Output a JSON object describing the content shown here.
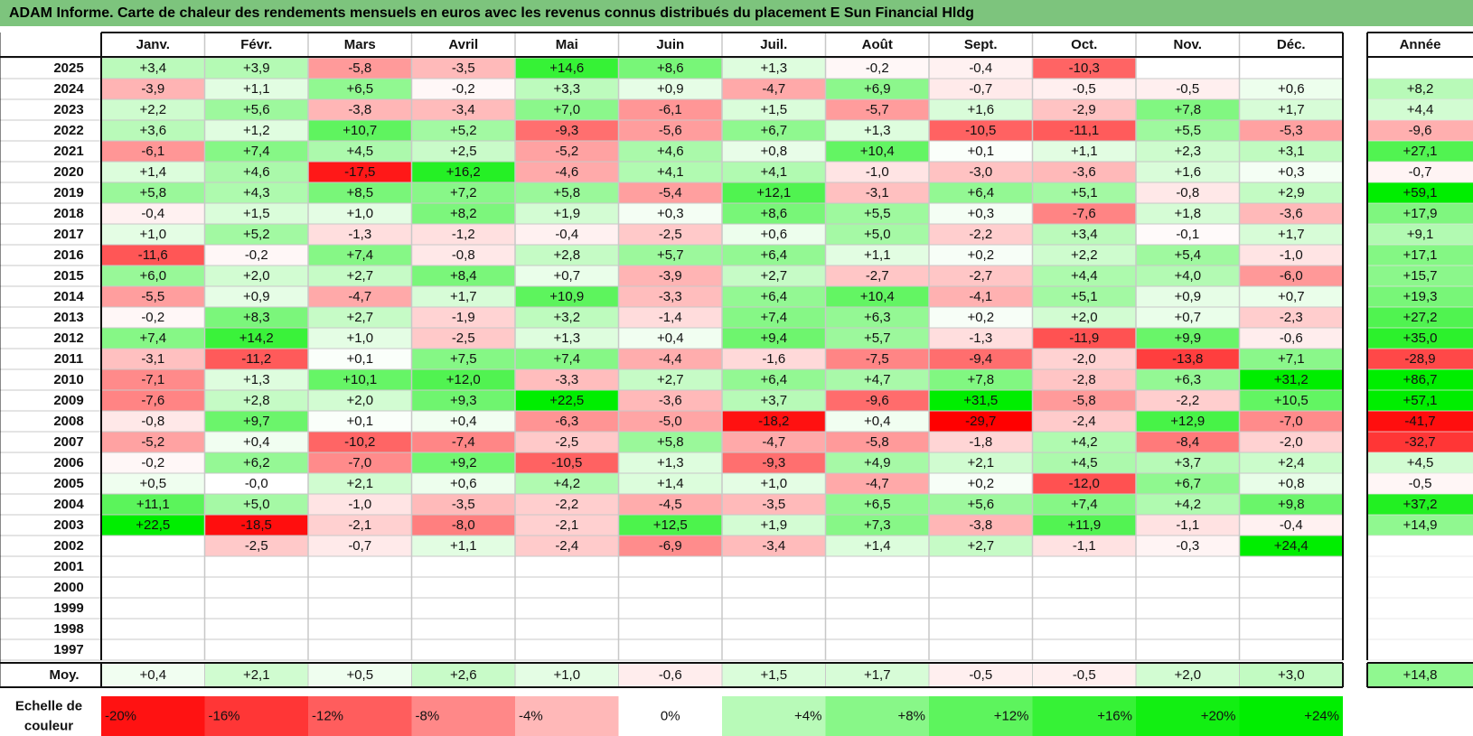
{
  "title": "ADAM Informe. Carte de chaleur des rendements mensuels en euros avec les revenus connus distribués du placement E Sun Financial Hldg",
  "year_header": "Année",
  "avg_label": "Moy.",
  "scale_label_line1": "Echelle de",
  "scale_label_line2": "couleur",
  "colors": {
    "negative": "#ff0000",
    "positive": "#00ee00",
    "neutral": "#ffffff",
    "title_bg": "#7dc47d"
  },
  "chart_data": {
    "type": "heatmap",
    "title": "ADAM Informe. Carte de chaleur des rendements mensuels en euros avec les revenus connus distribués du placement E Sun Financial Hldg",
    "columns": [
      "Janv.",
      "Févr.",
      "Mars",
      "Avril",
      "Mai",
      "Juin",
      "Juil.",
      "Août",
      "Sept.",
      "Oct.",
      "Nov.",
      "Déc."
    ],
    "rows": [
      {
        "year": "2025",
        "values": [
          "+3,4",
          "+3,9",
          "-5,8",
          "-3,5",
          "+14,6",
          "+8,6",
          "+1,3",
          "-0,2",
          "-0,4",
          "-10,3",
          "",
          ""
        ],
        "annual": ""
      },
      {
        "year": "2024",
        "values": [
          "-3,9",
          "+1,1",
          "+6,5",
          "-0,2",
          "+3,3",
          "+0,9",
          "-4,7",
          "+6,9",
          "-0,7",
          "-0,5",
          "-0,5",
          "+0,6"
        ],
        "annual": "+8,2"
      },
      {
        "year": "2023",
        "values": [
          "+2,2",
          "+5,6",
          "-3,8",
          "-3,4",
          "+7,0",
          "-6,1",
          "+1,5",
          "-5,7",
          "+1,6",
          "-2,9",
          "+7,8",
          "+1,7"
        ],
        "annual": "+4,4"
      },
      {
        "year": "2022",
        "values": [
          "+3,6",
          "+1,2",
          "+10,7",
          "+5,2",
          "-9,3",
          "-5,6",
          "+6,7",
          "+1,3",
          "-10,5",
          "-11,1",
          "+5,5",
          "-5,3"
        ],
        "annual": "-9,6"
      },
      {
        "year": "2021",
        "values": [
          "-6,1",
          "+7,4",
          "+4,5",
          "+2,5",
          "-5,2",
          "+4,6",
          "+0,8",
          "+10,4",
          "+0,1",
          "+1,1",
          "+2,3",
          "+3,1"
        ],
        "annual": "+27,1"
      },
      {
        "year": "2020",
        "values": [
          "+1,4",
          "+4,6",
          "-17,5",
          "+16,2",
          "-4,6",
          "+4,1",
          "+4,1",
          "-1,0",
          "-3,0",
          "-3,6",
          "+1,6",
          "+0,3"
        ],
        "annual": "-0,7"
      },
      {
        "year": "2019",
        "values": [
          "+5,8",
          "+4,3",
          "+8,5",
          "+7,2",
          "+5,8",
          "-5,4",
          "+12,1",
          "-3,1",
          "+6,4",
          "+5,1",
          "-0,8",
          "+2,9"
        ],
        "annual": "+59,1"
      },
      {
        "year": "2018",
        "values": [
          "-0,4",
          "+1,5",
          "+1,0",
          "+8,2",
          "+1,9",
          "+0,3",
          "+8,6",
          "+5,5",
          "+0,3",
          "-7,6",
          "+1,8",
          "-3,6"
        ],
        "annual": "+17,9"
      },
      {
        "year": "2017",
        "values": [
          "+1,0",
          "+5,2",
          "-1,3",
          "-1,2",
          "-0,4",
          "-2,5",
          "+0,6",
          "+5,0",
          "-2,2",
          "+3,4",
          "-0,1",
          "+1,7"
        ],
        "annual": "+9,1"
      },
      {
        "year": "2016",
        "values": [
          "-11,6",
          "-0,2",
          "+7,4",
          "-0,8",
          "+2,8",
          "+5,7",
          "+6,4",
          "+1,1",
          "+0,2",
          "+2,2",
          "+5,4",
          "-1,0"
        ],
        "annual": "+17,1"
      },
      {
        "year": "2015",
        "values": [
          "+6,0",
          "+2,0",
          "+2,7",
          "+8,4",
          "+0,7",
          "-3,9",
          "+2,7",
          "-2,7",
          "-2,7",
          "+4,4",
          "+4,0",
          "-6,0"
        ],
        "annual": "+15,7"
      },
      {
        "year": "2014",
        "values": [
          "-5,5",
          "+0,9",
          "-4,7",
          "+1,7",
          "+10,9",
          "-3,3",
          "+6,4",
          "+10,4",
          "-4,1",
          "+5,1",
          "+0,9",
          "+0,7"
        ],
        "annual": "+19,3"
      },
      {
        "year": "2013",
        "values": [
          "-0,2",
          "+8,3",
          "+2,7",
          "-1,9",
          "+3,2",
          "-1,4",
          "+7,4",
          "+6,3",
          "+0,2",
          "+2,0",
          "+0,7",
          "-2,3"
        ],
        "annual": "+27,2"
      },
      {
        "year": "2012",
        "values": [
          "+7,4",
          "+14,2",
          "+1,0",
          "-2,5",
          "+1,3",
          "+0,4",
          "+9,4",
          "+5,7",
          "-1,3",
          "-11,9",
          "+9,9",
          "-0,6"
        ],
        "annual": "+35,0"
      },
      {
        "year": "2011",
        "values": [
          "-3,1",
          "-11,2",
          "+0,1",
          "+7,5",
          "+7,4",
          "-4,4",
          "-1,6",
          "-7,5",
          "-9,4",
          "-2,0",
          "-13,8",
          "+7,1"
        ],
        "annual": "-28,9"
      },
      {
        "year": "2010",
        "values": [
          "-7,1",
          "+1,3",
          "+10,1",
          "+12,0",
          "-3,3",
          "+2,7",
          "+6,4",
          "+4,7",
          "+7,8",
          "-2,8",
          "+6,3",
          "+31,2"
        ],
        "annual": "+86,7"
      },
      {
        "year": "2009",
        "values": [
          "-7,6",
          "+2,8",
          "+2,0",
          "+9,3",
          "+22,5",
          "-3,6",
          "+3,7",
          "-9,6",
          "+31,5",
          "-5,8",
          "-2,2",
          "+10,5"
        ],
        "annual": "+57,1"
      },
      {
        "year": "2008",
        "values": [
          "-0,8",
          "+9,7",
          "+0,1",
          "+0,4",
          "-6,3",
          "-5,0",
          "-18,2",
          "+0,4",
          "-29,7",
          "-2,4",
          "+12,9",
          "-7,0"
        ],
        "annual": "-41,7"
      },
      {
        "year": "2007",
        "values": [
          "-5,2",
          "+0,4",
          "-10,2",
          "-7,4",
          "-2,5",
          "+5,8",
          "-4,7",
          "-5,8",
          "-1,8",
          "+4,2",
          "-8,4",
          "-2,0"
        ],
        "annual": "-32,7"
      },
      {
        "year": "2006",
        "values": [
          "-0,2",
          "+6,2",
          "-7,0",
          "+9,2",
          "-10,5",
          "+1,3",
          "-9,3",
          "+4,9",
          "+2,1",
          "+4,5",
          "+3,7",
          "+2,4"
        ],
        "annual": "+4,5"
      },
      {
        "year": "2005",
        "values": [
          "+0,5",
          "-0,0",
          "+2,1",
          "+0,6",
          "+4,2",
          "+1,4",
          "+1,0",
          "-4,7",
          "+0,2",
          "-12,0",
          "+6,7",
          "+0,8"
        ],
        "annual": "-0,5"
      },
      {
        "year": "2004",
        "values": [
          "+11,1",
          "+5,0",
          "-1,0",
          "-3,5",
          "-2,2",
          "-4,5",
          "-3,5",
          "+6,5",
          "+5,6",
          "+7,4",
          "+4,2",
          "+9,8"
        ],
        "annual": "+37,2"
      },
      {
        "year": "2003",
        "values": [
          "+22,5",
          "-18,5",
          "-2,1",
          "-8,0",
          "-2,1",
          "+12,5",
          "+1,9",
          "+7,3",
          "-3,8",
          "+11,9",
          "-1,1",
          "-0,4"
        ],
        "annual": "+14,9"
      },
      {
        "year": "2002",
        "values": [
          "",
          "-2,5",
          "-0,7",
          "+1,1",
          "-2,4",
          "-6,9",
          "-3,4",
          "+1,4",
          "+2,7",
          "-1,1",
          "-0,3",
          "+24,4"
        ],
        "annual": ""
      },
      {
        "year": "2001",
        "values": [
          "",
          "",
          "",
          "",
          "",
          "",
          "",
          "",
          "",
          "",
          "",
          ""
        ],
        "annual": ""
      },
      {
        "year": "2000",
        "values": [
          "",
          "",
          "",
          "",
          "",
          "",
          "",
          "",
          "",
          "",
          "",
          ""
        ],
        "annual": ""
      },
      {
        "year": "1999",
        "values": [
          "",
          "",
          "",
          "",
          "",
          "",
          "",
          "",
          "",
          "",
          "",
          ""
        ],
        "annual": ""
      },
      {
        "year": "1998",
        "values": [
          "",
          "",
          "",
          "",
          "",
          "",
          "",
          "",
          "",
          "",
          "",
          ""
        ],
        "annual": ""
      },
      {
        "year": "1997",
        "values": [
          "",
          "",
          "",
          "",
          "",
          "",
          "",
          "",
          "",
          "",
          "",
          ""
        ],
        "annual": ""
      }
    ],
    "averages": [
      "+0,4",
      "+2,1",
      "+0,5",
      "+2,6",
      "+1,0",
      "-0,6",
      "+1,5",
      "+1,7",
      "-0,5",
      "-0,5",
      "+2,0",
      "+3,0"
    ],
    "annual_average": "+14,8",
    "scale": [
      {
        "label": "-20%",
        "value": -20
      },
      {
        "label": "-16%",
        "value": -16
      },
      {
        "label": "-12%",
        "value": -12
      },
      {
        "label": "-8%",
        "value": -8
      },
      {
        "label": "-4%",
        "value": -4
      },
      {
        "label": "0%",
        "value": 0
      },
      {
        "label": "+4%",
        "value": 4
      },
      {
        "label": "+8%",
        "value": 8
      },
      {
        "label": "+12%",
        "value": 12
      },
      {
        "label": "+16%",
        "value": 16
      },
      {
        "label": "+20%",
        "value": 20
      },
      {
        "label": "+24%",
        "value": 24
      }
    ]
  }
}
